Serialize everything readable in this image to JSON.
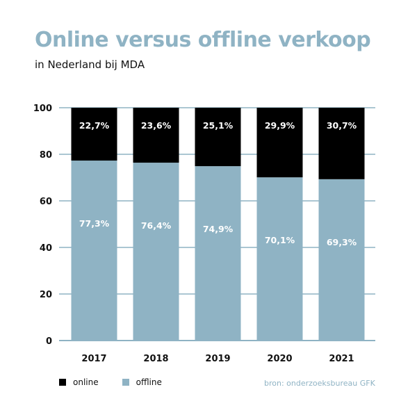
{
  "header": {
    "title": "Online versus offline verkoop",
    "subtitle": "in Nederland bij MDA"
  },
  "source": "bron: onderzoeksbureau GFK",
  "colors": {
    "online": "#000000",
    "offline": "#8fb3c4",
    "grid": "#8fb3c4",
    "title": "#8fb3c4"
  },
  "chart_data": {
    "type": "bar",
    "stacked": true,
    "title": "Online versus offline verkoop",
    "subtitle": "in Nederland bij MDA",
    "xlabel": "",
    "ylabel": "",
    "categories": [
      "2017",
      "2018",
      "2019",
      "2020",
      "2021"
    ],
    "ylim": [
      0,
      100
    ],
    "yticks": [
      0,
      20,
      40,
      60,
      80,
      100
    ],
    "grid": true,
    "legend_position": "bottom-left",
    "series": [
      {
        "name": "offline",
        "values": [
          77.3,
          76.4,
          74.9,
          70.1,
          69.3
        ],
        "labels": [
          "77,3%",
          "76,4%",
          "74,9%",
          "70,1%",
          "69,3%"
        ]
      },
      {
        "name": "online",
        "values": [
          22.7,
          23.6,
          25.1,
          29.9,
          30.7
        ],
        "labels": [
          "22,7%",
          "23,6%",
          "25,1%",
          "29,9%",
          "30,7%"
        ]
      }
    ]
  }
}
